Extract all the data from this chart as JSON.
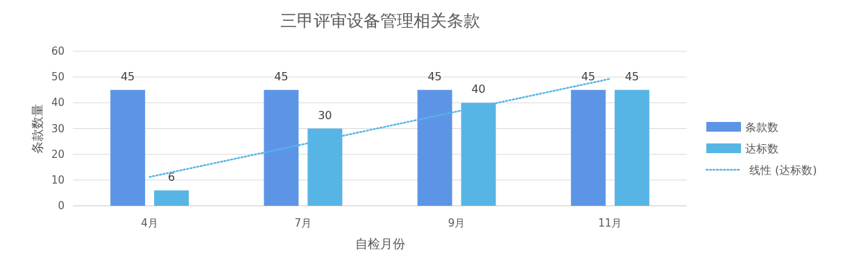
{
  "chart_data": {
    "type": "bar",
    "title": "三甲评审设备管理相关条款",
    "xlabel": "自检月份",
    "ylabel": "条款数量",
    "categories": [
      "4月",
      "7月",
      "9月",
      "11月"
    ],
    "series": [
      {
        "name": "条款数",
        "color": "#5d95e6",
        "values": [
          45,
          45,
          45,
          45
        ],
        "value_labels": [
          "45",
          "45",
          "45",
          "45"
        ]
      },
      {
        "name": "达标数",
        "color": "#57b5e5",
        "values": [
          6,
          30,
          40,
          45
        ],
        "value_labels": [
          "6",
          "30",
          "40",
          "45"
        ]
      },
      {
        "name": "线性 (达标数)",
        "type": "line",
        "color": "#57b5e5",
        "line_style": "dotted",
        "x": [
          "4月",
          "11月"
        ],
        "values": [
          11.2,
          49.3
        ]
      }
    ],
    "ylim": [
      0,
      60
    ],
    "yticks": [
      0,
      10,
      20,
      30,
      40,
      50,
      60
    ],
    "grid": "y",
    "legend": "right"
  }
}
